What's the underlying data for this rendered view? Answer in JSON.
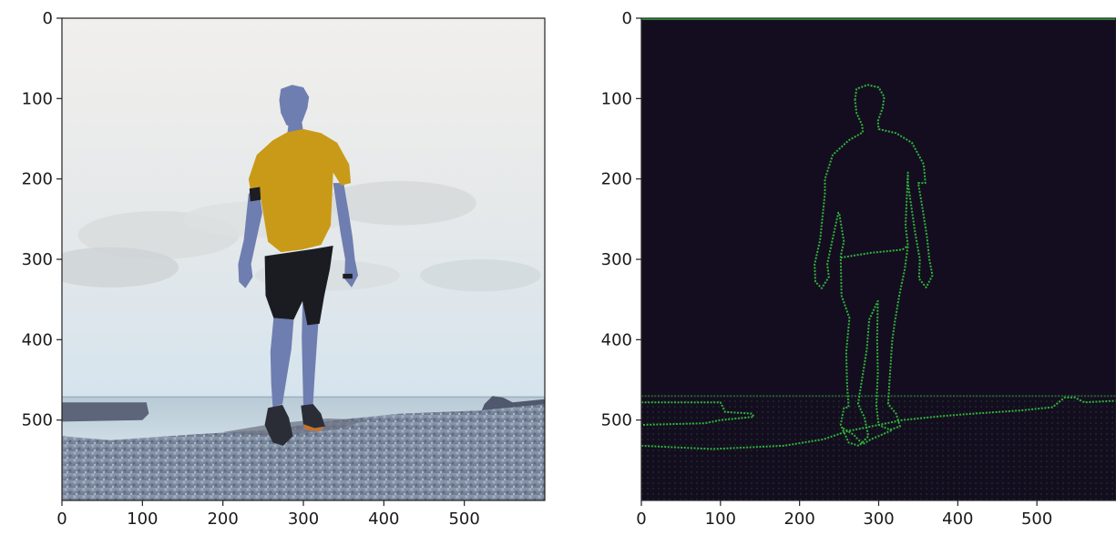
{
  "chart_data": [
    {
      "type": "image",
      "title": "",
      "xlabel": "",
      "ylabel": "",
      "xlim": [
        0,
        600
      ],
      "ylim": [
        600,
        0
      ],
      "xticks": [
        0,
        100,
        200,
        300,
        400,
        500
      ],
      "yticks": [
        0,
        100,
        200,
        300,
        400,
        500
      ],
      "grid": false,
      "content": "photo of a man in a yellow t-shirt and black shorts walking on a pebble beach, cloudy sky"
    },
    {
      "type": "image",
      "title": "",
      "xlabel": "",
      "ylabel": "",
      "xlim": [
        0,
        600
      ],
      "ylim": [
        600,
        0
      ],
      "xticks": [
        0,
        100,
        200,
        300,
        400,
        500
      ],
      "yticks": [
        0,
        100,
        200,
        300,
        400,
        500
      ],
      "grid": false,
      "content": "edge-detection result of the same photo: green outline on dark background"
    }
  ],
  "colors": {
    "edge": "#2fb33b",
    "edge_background": "#140d1f",
    "shirt": "#c99a17",
    "shorts": "#1b1c22",
    "skin": "#6f7eb0"
  }
}
